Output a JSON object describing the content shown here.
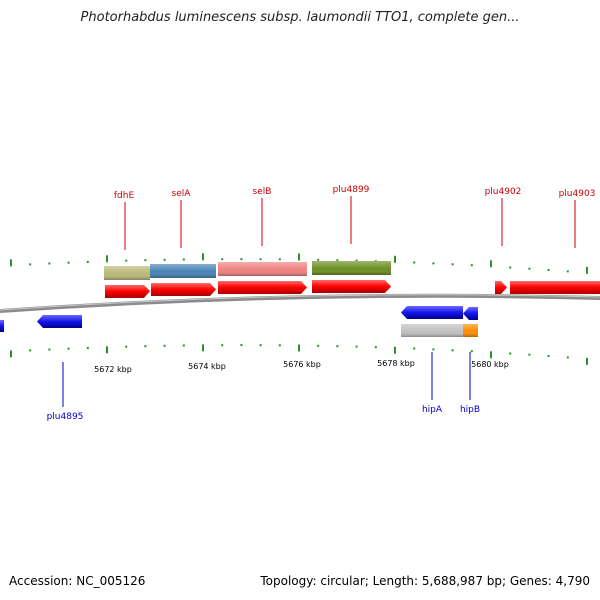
{
  "header": {
    "title": "Photorhabdus luminescens subsp. laumondii TTO1, complete gen..."
  },
  "footer": {
    "accession": "Accession: NC_005126",
    "summary": "Topology: circular; Length: 5,688,987 bp; Genes: 4,790"
  },
  "scale": {
    "labels": [
      {
        "text": "5672 kbp",
        "kbp": 5672
      },
      {
        "text": "5674 kbp",
        "kbp": 5674
      },
      {
        "text": "5676 kbp",
        "kbp": 5676
      },
      {
        "text": "5678 kbp",
        "kbp": 5678
      },
      {
        "text": "5680 kbp",
        "kbp": 5680
      }
    ]
  },
  "genes_forward": [
    {
      "name": "fdhE",
      "label": "fdhE"
    },
    {
      "name": "selA",
      "label": "selA"
    },
    {
      "name": "selB",
      "label": "selB"
    },
    {
      "name": "plu4899",
      "label": "plu4899"
    },
    {
      "name": "plu4902",
      "label": "plu4902"
    },
    {
      "name": "plu4903",
      "label": "plu4903"
    }
  ],
  "genes_reverse": [
    {
      "name": "plu4895",
      "label": "plu4895"
    },
    {
      "name": "hipA",
      "label": "hipA"
    },
    {
      "name": "hipB",
      "label": "hipB"
    }
  ],
  "colors": {
    "forward_label": "#cc0000",
    "reverse_label": "#0000cc",
    "cds_forward": "#ff0000",
    "cds_reverse": "#1515ee",
    "tick": "#2f8f2f",
    "backbone": "#8c8c8c",
    "fdhE": "#b8b878",
    "selA": "#4682b4",
    "selB": "#f08080",
    "plu4899": "#6b8e23",
    "hipA": "#c0c0c0",
    "hipB": "#ff8c00"
  }
}
